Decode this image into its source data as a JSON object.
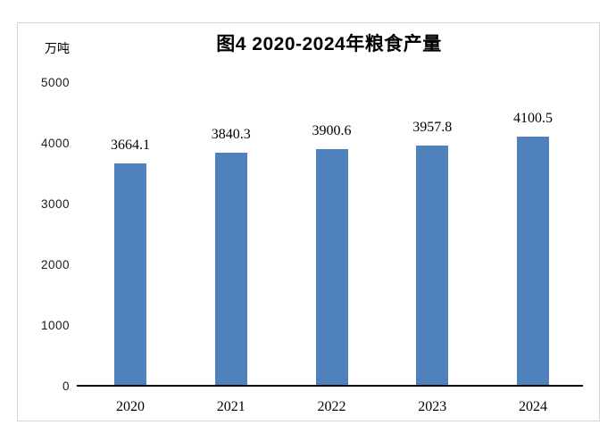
{
  "chart_data": {
    "type": "bar",
    "title": "图4 2020-2024年粮食产量",
    "unit_label": "万吨",
    "categories": [
      "2020",
      "2021",
      "2022",
      "2023",
      "2024"
    ],
    "values": [
      3664.1,
      3840.3,
      3900.6,
      3957.8,
      4100.5
    ],
    "data_labels": [
      "3664.1",
      "3840.3",
      "3900.6",
      "3957.8",
      "4100.5"
    ],
    "series_name": "粮食产量",
    "xlabel": "",
    "ylabel": "万吨",
    "ylim": [
      0,
      5000
    ],
    "yticks": [
      0,
      1000,
      2000,
      3000,
      4000,
      5000
    ],
    "grid": false,
    "legend": "none",
    "bar_color": "#4f81bd",
    "frame_color": "#d6d6d6",
    "axis_color": "#000000",
    "text_color": "#000000"
  }
}
